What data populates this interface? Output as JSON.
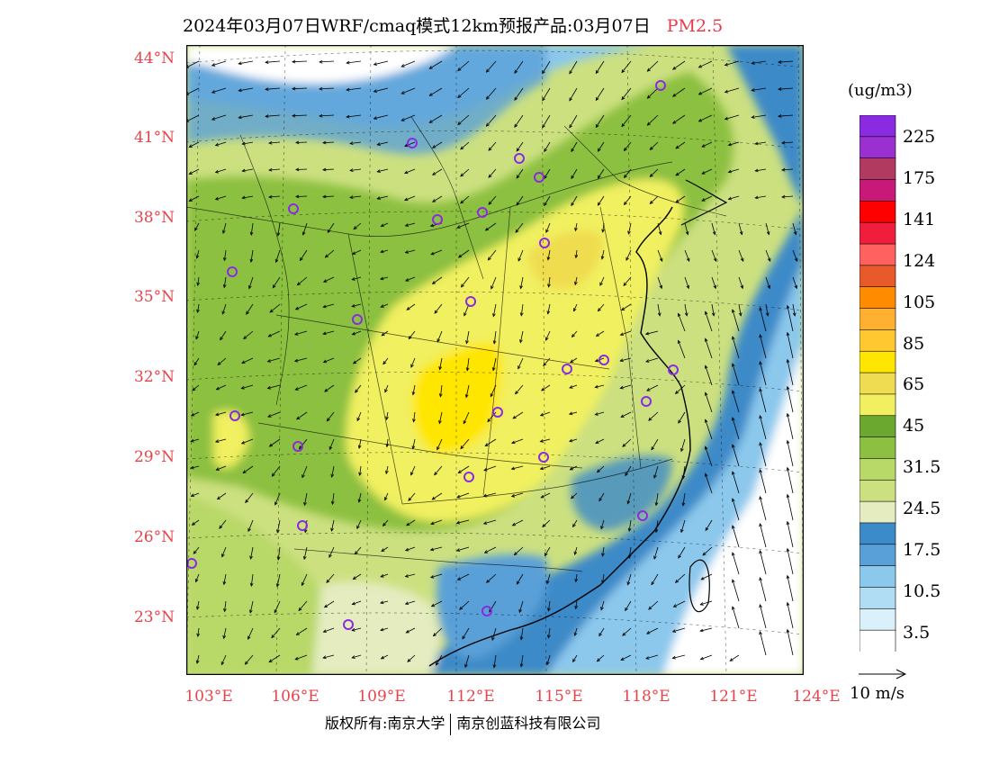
{
  "title": {
    "main": "2024年03月07日WRF/cmaq模式12km预报产品:03月07日",
    "pollutant": "PM2.5"
  },
  "lat_labels": [
    "44°N",
    "41°N",
    "38°N",
    "35°N",
    "32°N",
    "29°N",
    "26°N",
    "23°N"
  ],
  "lon_labels": [
    "103°E",
    "106°E",
    "109°E",
    "112°E",
    "115°E",
    "118°E",
    "121°E",
    "124°E"
  ],
  "colorbar": {
    "unit": "(ug/m3)",
    "labels": [
      "225",
      "175",
      "141",
      "124",
      "105",
      "85",
      "65",
      "45",
      "31.5",
      "24.5",
      "17.5",
      "10.5",
      "3.5"
    ],
    "colors": [
      "#8a2be2",
      "#9b30d0",
      "#b03a60",
      "#c81878",
      "#ff0000",
      "#f01e3c",
      "#ff6060",
      "#e85a2a",
      "#ff8c00",
      "#ffb030",
      "#ffc830",
      "#ffe600",
      "#f0dc50",
      "#f0f060",
      "#6aa830",
      "#8cc040",
      "#b8d868",
      "#cce080",
      "#e4ecc0",
      "#3c8ac8",
      "#5aa0d8",
      "#8cc8ec",
      "#b0dcf4",
      "#daf0fa",
      "#ffffff"
    ]
  },
  "wind_reference": "10 m/s",
  "footer": {
    "left": "版权所有:南京大学",
    "right": "南京创蓝科技有限公司"
  }
}
